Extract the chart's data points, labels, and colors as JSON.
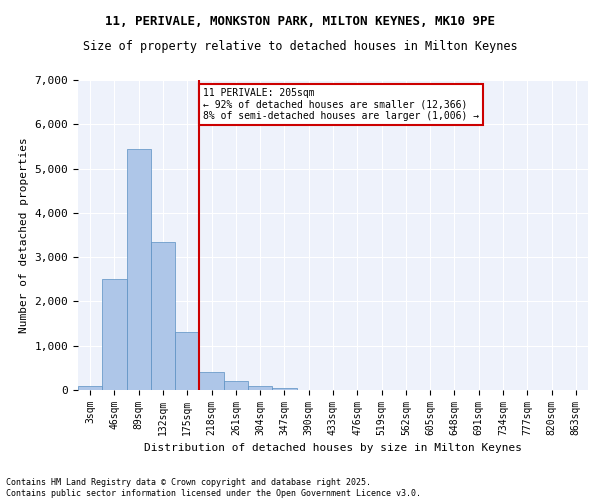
{
  "title1": "11, PERIVALE, MONKSTON PARK, MILTON KEYNES, MK10 9PE",
  "title2": "Size of property relative to detached houses in Milton Keynes",
  "xlabel": "Distribution of detached houses by size in Milton Keynes",
  "ylabel": "Number of detached properties",
  "bin_labels": [
    "3sqm",
    "46sqm",
    "89sqm",
    "132sqm",
    "175sqm",
    "218sqm",
    "261sqm",
    "304sqm",
    "347sqm",
    "390sqm",
    "433sqm",
    "476sqm",
    "519sqm",
    "562sqm",
    "605sqm",
    "648sqm",
    "691sqm",
    "734sqm",
    "777sqm",
    "820sqm",
    "863sqm"
  ],
  "bar_values": [
    100,
    2500,
    5450,
    3350,
    1300,
    400,
    200,
    100,
    40,
    0,
    0,
    0,
    0,
    0,
    0,
    0,
    0,
    0,
    0,
    0,
    0
  ],
  "bar_color": "#aec6e8",
  "bar_edge_color": "#5a8fc2",
  "vline_x_index": 5,
  "annotation_line1": "11 PERIVALE: 205sqm",
  "annotation_line2": "← 92% of detached houses are smaller (12,366)",
  "annotation_line3": "8% of semi-detached houses are larger (1,006) →",
  "annotation_box_color": "#ffffff",
  "annotation_box_edge": "#cc0000",
  "vline_color": "#cc0000",
  "background_color": "#eef2fb",
  "grid_color": "#ffffff",
  "ylim": [
    0,
    7000
  ],
  "yticks": [
    0,
    1000,
    2000,
    3000,
    4000,
    5000,
    6000,
    7000
  ],
  "footer1": "Contains HM Land Registry data © Crown copyright and database right 2025.",
  "footer2": "Contains public sector information licensed under the Open Government Licence v3.0."
}
